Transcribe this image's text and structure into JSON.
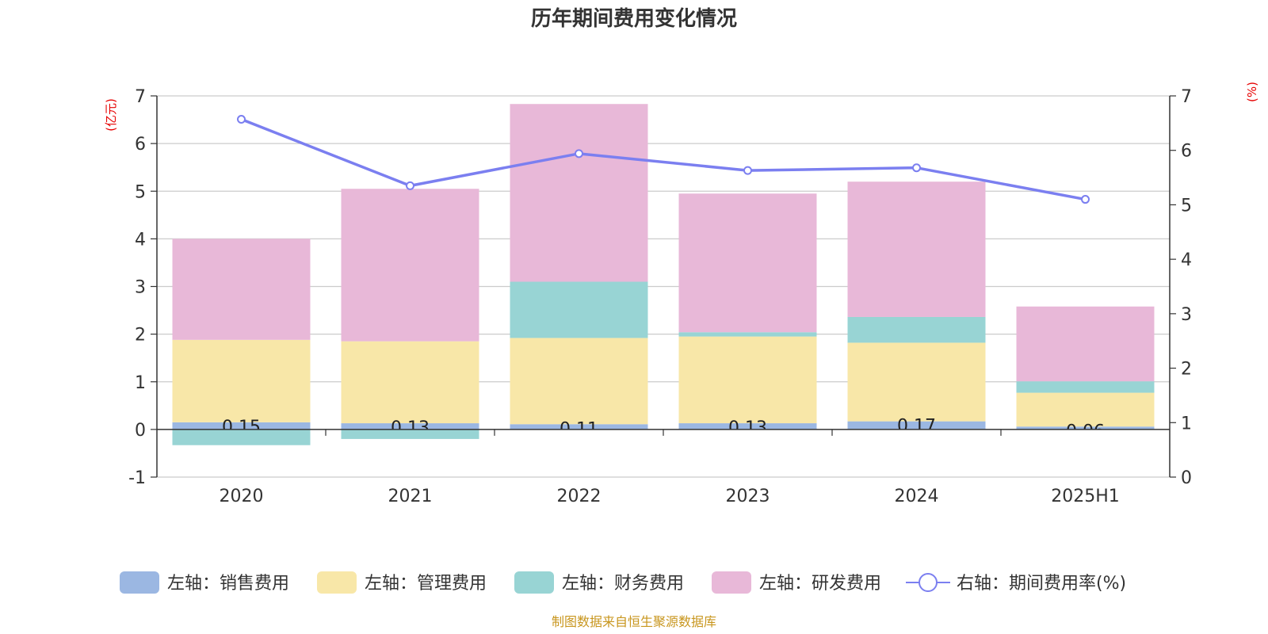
{
  "chart_data": {
    "type": "bar",
    "title": "历年期间费用变化情况",
    "categories": [
      "2020",
      "2021",
      "2022",
      "2023",
      "2024",
      "2025H1"
    ],
    "left_axis": {
      "unit": "(亿元)",
      "ylim": [
        -1,
        7
      ],
      "ticks": [
        "-1",
        "0",
        "1",
        "2",
        "3",
        "4",
        "5",
        "6",
        "7"
      ]
    },
    "right_axis": {
      "unit": "(%)",
      "ylim": [
        0,
        7
      ],
      "ticks": [
        "0",
        "1",
        "2",
        "3",
        "4",
        "5",
        "6",
        "7"
      ]
    },
    "stacked": true,
    "grid": true,
    "legend_position": "bottom",
    "series": [
      {
        "name": "左轴：销售费用",
        "color": "#9bb7e2",
        "values": [
          0.15,
          0.13,
          0.11,
          0.13,
          0.17,
          0.06
        ],
        "labels": [
          "0.15",
          "0.13",
          "0.11",
          "0.13",
          "0.17",
          "0.06"
        ]
      },
      {
        "name": "左轴：管理费用",
        "color": "#f8e7a8",
        "values": [
          1.73,
          1.72,
          1.81,
          1.82,
          1.65,
          0.71
        ]
      },
      {
        "name": "左轴：财务费用",
        "color": "#98d4d4",
        "values": [
          -0.33,
          -0.2,
          1.18,
          0.09,
          0.54,
          0.24
        ]
      },
      {
        "name": "左轴：研发费用",
        "color": "#e8b8d8",
        "values": [
          2.12,
          3.2,
          3.73,
          2.91,
          2.84,
          1.57
        ]
      }
    ],
    "line_series": {
      "name": "右轴：期间费用率(%)",
      "color": "#7b7ff0",
      "values": [
        6.57,
        5.35,
        5.94,
        5.63,
        5.68,
        5.1
      ]
    },
    "source": "制图数据来自恒生聚源数据库"
  }
}
